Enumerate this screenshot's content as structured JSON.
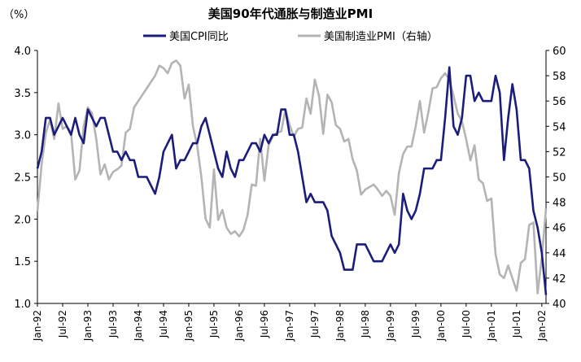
{
  "chart_data": {
    "type": "line",
    "title": "美国90年代通胀与制造业PMI",
    "ylabel_left": "（%）",
    "ylim_left": [
      1.0,
      4.0
    ],
    "yticks_left": [
      "4.0",
      "3.5",
      "3.0",
      "2.5",
      "2.0",
      "1.5",
      "1.0"
    ],
    "ylim_right": [
      40,
      60
    ],
    "yticks_right": [
      "60",
      "58",
      "56",
      "54",
      "52",
      "50",
      "48",
      "46",
      "44",
      "42",
      "40"
    ],
    "x_start": "1992-01",
    "x_ticks": [
      "Jan-92",
      "Jul-92",
      "Jan-93",
      "Jul-93",
      "Jan-94",
      "Jul-94",
      "Jan-95",
      "Jul-95",
      "Jan-96",
      "Jul-96",
      "Jan-97",
      "Jul-97",
      "Jan-98",
      "Jul-98",
      "Jan-99",
      "Jul-99",
      "Jan-00",
      "Jul-00",
      "Jan-01",
      "Jul-01",
      "Jan-02"
    ],
    "legend_position": "top",
    "grid": false,
    "series": [
      {
        "name": "美国CPI同比",
        "axis": "left",
        "color": "#1c1c7a",
        "values": [
          2.6,
          2.8,
          3.2,
          3.2,
          3.0,
          3.1,
          3.2,
          3.1,
          3.0,
          3.2,
          3.0,
          2.9,
          3.3,
          3.2,
          3.1,
          3.2,
          3.2,
          3.0,
          2.8,
          2.8,
          2.7,
          2.8,
          2.7,
          2.7,
          2.5,
          2.5,
          2.5,
          2.4,
          2.3,
          2.5,
          2.8,
          2.9,
          3.0,
          2.6,
          2.7,
          2.7,
          2.8,
          2.9,
          2.9,
          3.1,
          3.2,
          3.0,
          2.8,
          2.6,
          2.5,
          2.8,
          2.6,
          2.5,
          2.7,
          2.7,
          2.8,
          2.9,
          2.9,
          2.8,
          3.0,
          2.9,
          3.0,
          3.0,
          3.3,
          3.3,
          3.0,
          3.0,
          2.8,
          2.5,
          2.2,
          2.3,
          2.2,
          2.2,
          2.2,
          2.1,
          1.8,
          1.7,
          1.6,
          1.4,
          1.4,
          1.4,
          1.7,
          1.7,
          1.7,
          1.6,
          1.5,
          1.5,
          1.5,
          1.6,
          1.7,
          1.6,
          1.7,
          2.3,
          2.1,
          2.0,
          2.1,
          2.3,
          2.6,
          2.6,
          2.6,
          2.7,
          2.7,
          3.2,
          3.8,
          3.1,
          3.0,
          3.2,
          3.7,
          3.7,
          3.4,
          3.5,
          3.4,
          3.4,
          3.4,
          3.7,
          3.5,
          2.7,
          3.2,
          3.6,
          3.3,
          2.7,
          2.7,
          2.6,
          2.1,
          1.9,
          1.6,
          1.1
        ]
      },
      {
        "name": "美国制造业PMI（右轴）",
        "axis": "right",
        "color": "#b4b4b4",
        "values": [
          47.3,
          51.0,
          53.5,
          54.5,
          53.0,
          55.8,
          53.8,
          54.0,
          53.5,
          49.8,
          50.5,
          54.0,
          55.5,
          55.0,
          53.0,
          50.2,
          51.0,
          49.8,
          50.4,
          50.6,
          50.9,
          53.5,
          53.8,
          55.5,
          56.0,
          56.5,
          57.0,
          57.5,
          58.0,
          58.8,
          58.6,
          58.2,
          59.0,
          59.2,
          58.8,
          56.2,
          57.3,
          54.0,
          52.5,
          50.0,
          46.7,
          46.0,
          50.6,
          46.6,
          47.4,
          46.0,
          45.5,
          45.7,
          45.3,
          45.8,
          47.0,
          49.4,
          49.3,
          53.0,
          49.7,
          52.5,
          53.2,
          53.5,
          53.6,
          55.3,
          54.1,
          53.2,
          53.8,
          53.9,
          56.2,
          55.0,
          57.7,
          56.4,
          53.4,
          56.5,
          55.9,
          54.1,
          53.8,
          52.8,
          53.0,
          51.4,
          50.5,
          48.6,
          49.0,
          49.2,
          49.4,
          49.0,
          48.5,
          48.9,
          48.5,
          47.0,
          50.3,
          51.8,
          52.4,
          52.4,
          54.0,
          56.0,
          53.5,
          55.1,
          57.0,
          57.1,
          57.8,
          58.2,
          57.7,
          56.4,
          55.0,
          54.4,
          53.0,
          51.3,
          52.5,
          49.8,
          49.5,
          48.1,
          48.3,
          43.9,
          42.3,
          42.0,
          43.0,
          42.0,
          41.0,
          43.2,
          43.5,
          46.2,
          46.4,
          40.8,
          43.6,
          47.5
        ]
      }
    ]
  }
}
